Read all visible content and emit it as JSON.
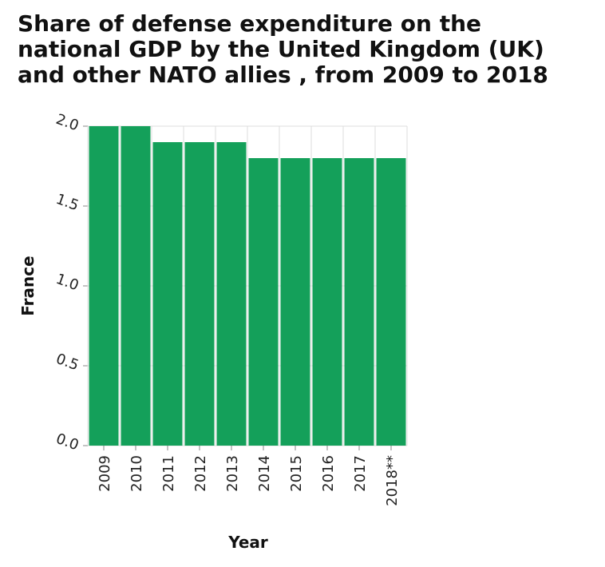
{
  "chart_data": {
    "type": "bar",
    "title": "Share of defense expenditure on the national GDP by the United Kingdom (UK) and other NATO allies , from 2009 to 2018",
    "xlabel": "Year",
    "ylabel": "France",
    "categories": [
      "2009",
      "2010",
      "2011",
      "2012",
      "2013",
      "2014",
      "2015",
      "2016",
      "2017",
      "2018**"
    ],
    "values": [
      2.0,
      2.0,
      1.9,
      1.9,
      1.9,
      1.8,
      1.8,
      1.8,
      1.8,
      1.8
    ],
    "ylim": [
      0,
      2.0
    ],
    "yticks": [
      "0.0",
      "0.5",
      "1.0",
      "1.5",
      "2.0"
    ],
    "grid": true,
    "legend": "none",
    "bar_color": "#14a05a"
  }
}
